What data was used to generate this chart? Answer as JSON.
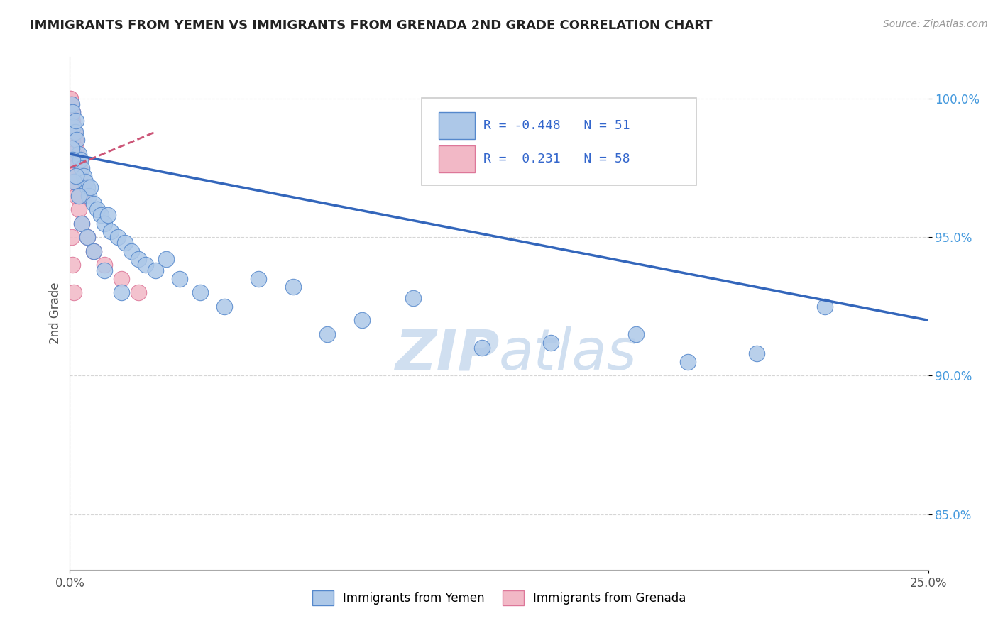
{
  "title": "IMMIGRANTS FROM YEMEN VS IMMIGRANTS FROM GRENADA 2ND GRADE CORRELATION CHART",
  "source_text": "Source: ZipAtlas.com",
  "ylabel": "2nd Grade",
  "xlim": [
    0.0,
    25.0
  ],
  "ylim": [
    83.0,
    101.5
  ],
  "y_ticks": [
    85.0,
    90.0,
    95.0,
    100.0
  ],
  "y_tick_labels": [
    "85.0%",
    "90.0%",
    "95.0%",
    "100.0%"
  ],
  "blue_R": -0.448,
  "blue_N": 51,
  "pink_R": 0.231,
  "pink_N": 58,
  "blue_label": "Immigrants from Yemen",
  "pink_label": "Immigrants from Grenada",
  "blue_color": "#adc8e8",
  "pink_color": "#f2b8c6",
  "blue_edge_color": "#5588cc",
  "pink_edge_color": "#dd7799",
  "blue_line_color": "#3366bb",
  "pink_line_color": "#cc5577",
  "watermark_color": "#d0dff0",
  "legend_text_color": "#3366cc",
  "ytick_color": "#4499dd",
  "blue_x": [
    0.05,
    0.08,
    0.1,
    0.15,
    0.18,
    0.2,
    0.25,
    0.3,
    0.35,
    0.4,
    0.45,
    0.5,
    0.55,
    0.6,
    0.7,
    0.8,
    0.9,
    1.0,
    1.1,
    1.2,
    1.4,
    1.6,
    1.8,
    2.0,
    2.2,
    2.5,
    2.8,
    3.2,
    3.8,
    4.5,
    5.5,
    6.5,
    7.5,
    8.5,
    10.0,
    12.0,
    14.0,
    16.5,
    18.0,
    20.0,
    22.0,
    0.05,
    0.08,
    0.12,
    0.18,
    0.25,
    0.35,
    0.5,
    0.7,
    1.0,
    1.5
  ],
  "blue_y": [
    99.8,
    99.5,
    99.0,
    98.8,
    99.2,
    98.5,
    98.0,
    97.8,
    97.5,
    97.2,
    97.0,
    96.8,
    96.5,
    96.8,
    96.2,
    96.0,
    95.8,
    95.5,
    95.8,
    95.2,
    95.0,
    94.8,
    94.5,
    94.2,
    94.0,
    93.8,
    94.2,
    93.5,
    93.0,
    92.5,
    93.5,
    93.2,
    91.5,
    92.0,
    92.8,
    91.0,
    91.2,
    91.5,
    90.5,
    90.8,
    92.5,
    98.2,
    97.8,
    97.0,
    97.2,
    96.5,
    95.5,
    95.0,
    94.5,
    93.8,
    93.0
  ],
  "pink_x": [
    0.02,
    0.04,
    0.06,
    0.08,
    0.1,
    0.12,
    0.15,
    0.18,
    0.2,
    0.25,
    0.02,
    0.05,
    0.08,
    0.12,
    0.16,
    0.2,
    0.25,
    0.3,
    0.35,
    0.4,
    0.02,
    0.04,
    0.07,
    0.1,
    0.14,
    0.18,
    0.22,
    0.28,
    0.35,
    0.42,
    0.02,
    0.05,
    0.08,
    0.12,
    0.16,
    0.2,
    0.25,
    0.3,
    0.02,
    0.05,
    0.08,
    0.12,
    0.18,
    0.25,
    0.35,
    0.5,
    0.7,
    1.0,
    1.5,
    2.0,
    0.02,
    0.04,
    0.06,
    0.1,
    0.15,
    0.05,
    0.08,
    0.12
  ],
  "pink_y": [
    100.0,
    99.8,
    99.5,
    99.2,
    99.0,
    98.8,
    98.5,
    98.2,
    98.0,
    97.8,
    99.5,
    99.2,
    98.8,
    98.5,
    98.2,
    97.8,
    97.5,
    97.2,
    97.0,
    96.8,
    100.0,
    99.8,
    99.5,
    99.0,
    98.8,
    98.2,
    97.8,
    97.5,
    97.0,
    96.5,
    99.2,
    98.8,
    98.5,
    98.0,
    97.5,
    97.2,
    96.8,
    96.5,
    98.5,
    98.0,
    97.5,
    97.0,
    96.5,
    96.0,
    95.5,
    95.0,
    94.5,
    94.0,
    93.5,
    93.0,
    99.0,
    98.5,
    98.0,
    97.5,
    97.0,
    95.0,
    94.0,
    93.0
  ],
  "blue_line_x0": 0.0,
  "blue_line_x1": 25.0,
  "blue_line_y0": 98.0,
  "blue_line_y1": 92.0,
  "pink_line_x0": 0.0,
  "pink_line_x1": 2.5,
  "pink_line_y0": 97.5,
  "pink_line_y1": 98.8
}
